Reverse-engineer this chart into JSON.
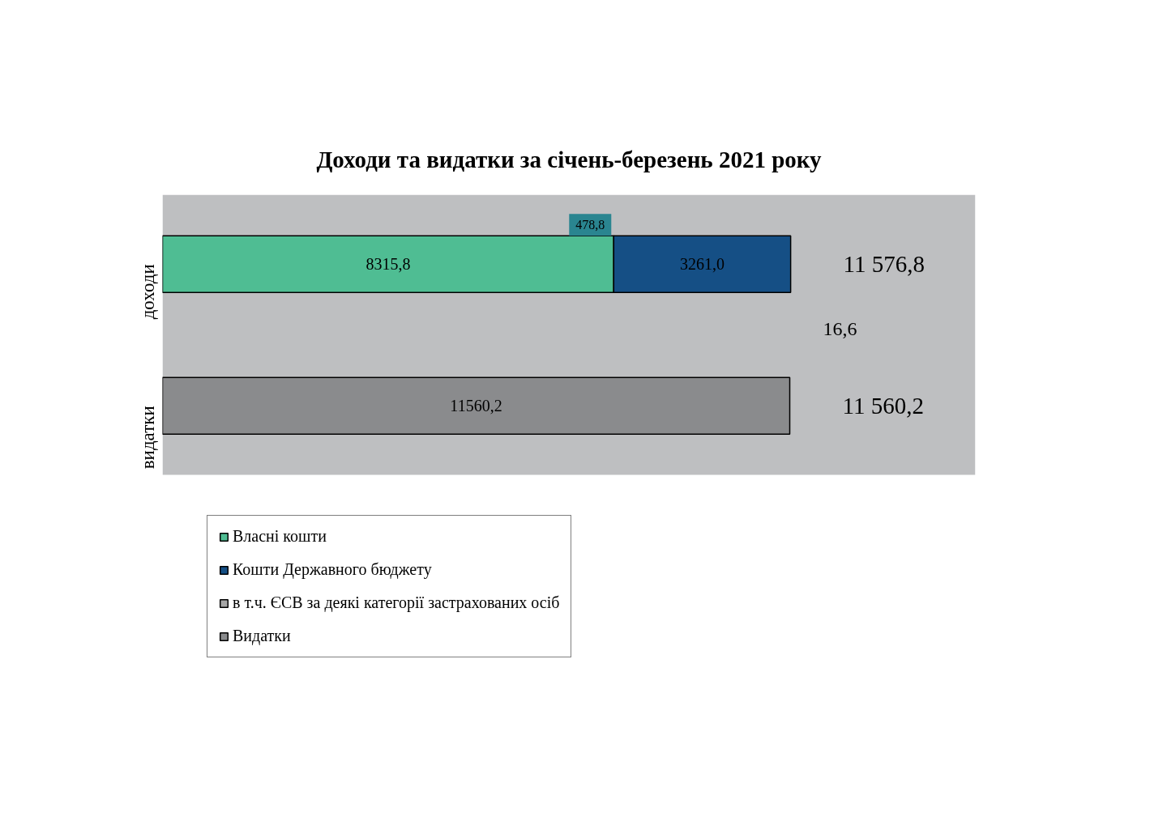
{
  "chart_data": {
    "type": "bar",
    "orientation": "horizontal",
    "stacked": true,
    "title": "Доходи та видатки за січень-березень 2021 року",
    "categories": [
      "доходи",
      "видатки"
    ],
    "series": [
      {
        "name": "Власні кошти",
        "color": "#4fbd93",
        "values": [
          8315.8,
          null
        ],
        "value_labels": [
          "8315,8",
          null
        ]
      },
      {
        "name": "Кошти Державного бюджету",
        "color": "#154f85",
        "values": [
          3261.0,
          null
        ],
        "value_labels": [
          "3261,0",
          null
        ]
      },
      {
        "name": "в т.ч. ЄСВ за деякі категорії застрахованих осіб",
        "color": "#a6a6a6",
        "values": [
          null,
          null
        ]
      },
      {
        "name": "Видатки",
        "color": "#8a8b8d",
        "values": [
          null,
          11560.2
        ],
        "value_labels": [
          null,
          "11560,2"
        ]
      }
    ],
    "totals": [
      "11 576,8",
      "11 560,2"
    ],
    "annotations": [
      "16,6",
      "478,8"
    ],
    "legend": "bottom",
    "tick_labels": "y"
  }
}
